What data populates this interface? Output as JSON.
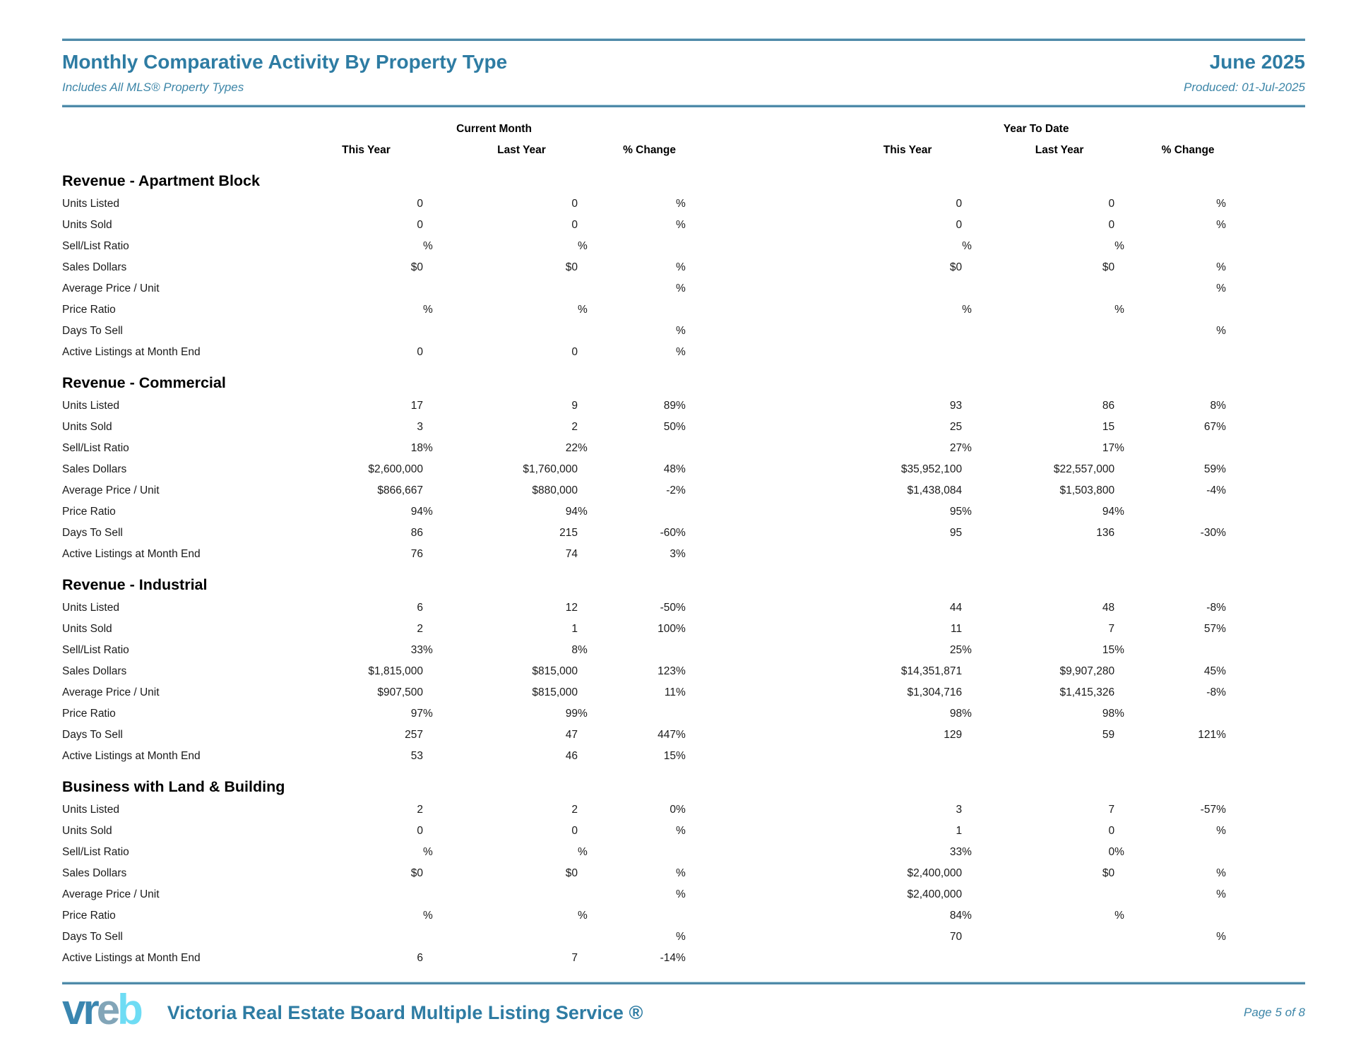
{
  "header": {
    "title": "Monthly Comparative Activity By Property Type",
    "period": "June 2025",
    "subtitle": "Includes All MLS® Property Types",
    "produced": "Produced: 01-Jul-2025"
  },
  "columns": {
    "group_current": "Current Month",
    "group_ytd": "Year To Date",
    "this_year": "This Year",
    "last_year": "Last Year",
    "pct_change": "% Change"
  },
  "sections": [
    {
      "title": "Revenue - Apartment Block",
      "rows": [
        {
          "label": "Units Listed",
          "values": [
            "0",
            "0",
            "%",
            "0",
            "0",
            "%"
          ]
        },
        {
          "label": "Units Sold",
          "values": [
            "0",
            "0",
            "%",
            "0",
            "0",
            "%"
          ]
        },
        {
          "label": "Sell/List Ratio",
          "values": [
            "%",
            "%",
            "",
            "%",
            "%",
            ""
          ]
        },
        {
          "label": "Sales Dollars",
          "values": [
            "$0",
            "$0",
            "%",
            "$0",
            "$0",
            "%"
          ]
        },
        {
          "label": "Average Price / Unit",
          "values": [
            "",
            "",
            "%",
            "",
            "",
            "%"
          ]
        },
        {
          "label": "Price Ratio",
          "values": [
            "%",
            "%",
            "",
            "%",
            "%",
            ""
          ]
        },
        {
          "label": "Days To Sell",
          "values": [
            "",
            "",
            "%",
            "",
            "",
            "%"
          ]
        },
        {
          "label": "Active Listings at Month End",
          "values": [
            "0",
            "0",
            "%",
            "",
            "",
            ""
          ]
        }
      ]
    },
    {
      "title": "Revenue - Commercial",
      "rows": [
        {
          "label": "Units Listed",
          "values": [
            "17",
            "9",
            "89 %",
            "93",
            "86",
            "8 %"
          ]
        },
        {
          "label": "Units Sold",
          "values": [
            "3",
            "2",
            "50 %",
            "25",
            "15",
            "67 %"
          ]
        },
        {
          "label": "Sell/List Ratio",
          "values": [
            "18 %",
            "22 %",
            "",
            "27 %",
            "17 %",
            ""
          ]
        },
        {
          "label": "Sales Dollars",
          "values": [
            "$2,600,000",
            "$1,760,000",
            "48 %",
            "$35,952,100",
            "$22,557,000",
            "59 %"
          ]
        },
        {
          "label": "Average Price / Unit",
          "values": [
            "$866,667",
            "$880,000",
            "-2 %",
            "$1,438,084",
            "$1,503,800",
            "-4 %"
          ]
        },
        {
          "label": "Price Ratio",
          "values": [
            "94 %",
            "94 %",
            "",
            "95 %",
            "94 %",
            ""
          ]
        },
        {
          "label": "Days To Sell",
          "values": [
            "86",
            "215",
            "-60 %",
            "95",
            "136",
            "-30 %"
          ]
        },
        {
          "label": "Active Listings at Month End",
          "values": [
            "76",
            "74",
            "3 %",
            "",
            "",
            ""
          ]
        }
      ]
    },
    {
      "title": "Revenue - Industrial",
      "rows": [
        {
          "label": "Units Listed",
          "values": [
            "6",
            "12",
            "-50 %",
            "44",
            "48",
            "-8 %"
          ]
        },
        {
          "label": "Units Sold",
          "values": [
            "2",
            "1",
            "100 %",
            "11",
            "7",
            "57 %"
          ]
        },
        {
          "label": "Sell/List Ratio",
          "values": [
            "33 %",
            "8 %",
            "",
            "25 %",
            "15 %",
            ""
          ]
        },
        {
          "label": "Sales Dollars",
          "values": [
            "$1,815,000",
            "$815,000",
            "123 %",
            "$14,351,871",
            "$9,907,280",
            "45 %"
          ]
        },
        {
          "label": "Average Price / Unit",
          "values": [
            "$907,500",
            "$815,000",
            "11 %",
            "$1,304,716",
            "$1,415,326",
            "-8 %"
          ]
        },
        {
          "label": "Price Ratio",
          "values": [
            "97 %",
            "99 %",
            "",
            "98 %",
            "98 %",
            ""
          ]
        },
        {
          "label": "Days To Sell",
          "values": [
            "257",
            "47",
            "447 %",
            "129",
            "59",
            "121 %"
          ]
        },
        {
          "label": "Active Listings at Month End",
          "values": [
            "53",
            "46",
            "15 %",
            "",
            "",
            ""
          ]
        }
      ]
    },
    {
      "title": "Business with Land & Building",
      "rows": [
        {
          "label": "Units Listed",
          "values": [
            "2",
            "2",
            "0 %",
            "3",
            "7",
            "-57 %"
          ]
        },
        {
          "label": "Units Sold",
          "values": [
            "0",
            "0",
            "%",
            "1",
            "0",
            "%"
          ]
        },
        {
          "label": "Sell/List Ratio",
          "values": [
            "%",
            "%",
            "",
            "33 %",
            "0 %",
            ""
          ]
        },
        {
          "label": "Sales Dollars",
          "values": [
            "$0",
            "$0",
            "%",
            "$2,400,000",
            "$0",
            "%"
          ]
        },
        {
          "label": "Average Price / Unit",
          "values": [
            "",
            "",
            "%",
            "$2,400,000",
            "",
            "%"
          ]
        },
        {
          "label": "Price Ratio",
          "values": [
            "%",
            "%",
            "",
            "84 %",
            "%",
            ""
          ]
        },
        {
          "label": "Days To Sell",
          "values": [
            "",
            "",
            "%",
            "70",
            "",
            "%"
          ]
        },
        {
          "label": "Active Listings at Month End",
          "values": [
            "6",
            "7",
            "-14 %",
            "",
            "",
            ""
          ]
        }
      ]
    }
  ],
  "footer": {
    "logo_part1": "vr",
    "logo_part2": "e",
    "logo_part3": "b",
    "org": "Victoria Real Estate Board Multiple Listing Service ®",
    "page": "Page 5 of 8"
  },
  "colors": {
    "accent_teal": "#2e7ca3",
    "rule_teal": "#4f8aa9",
    "logo_blue": "#3a86b0",
    "logo_steel": "#82a5b8",
    "logo_cyan": "#6edcf4"
  }
}
